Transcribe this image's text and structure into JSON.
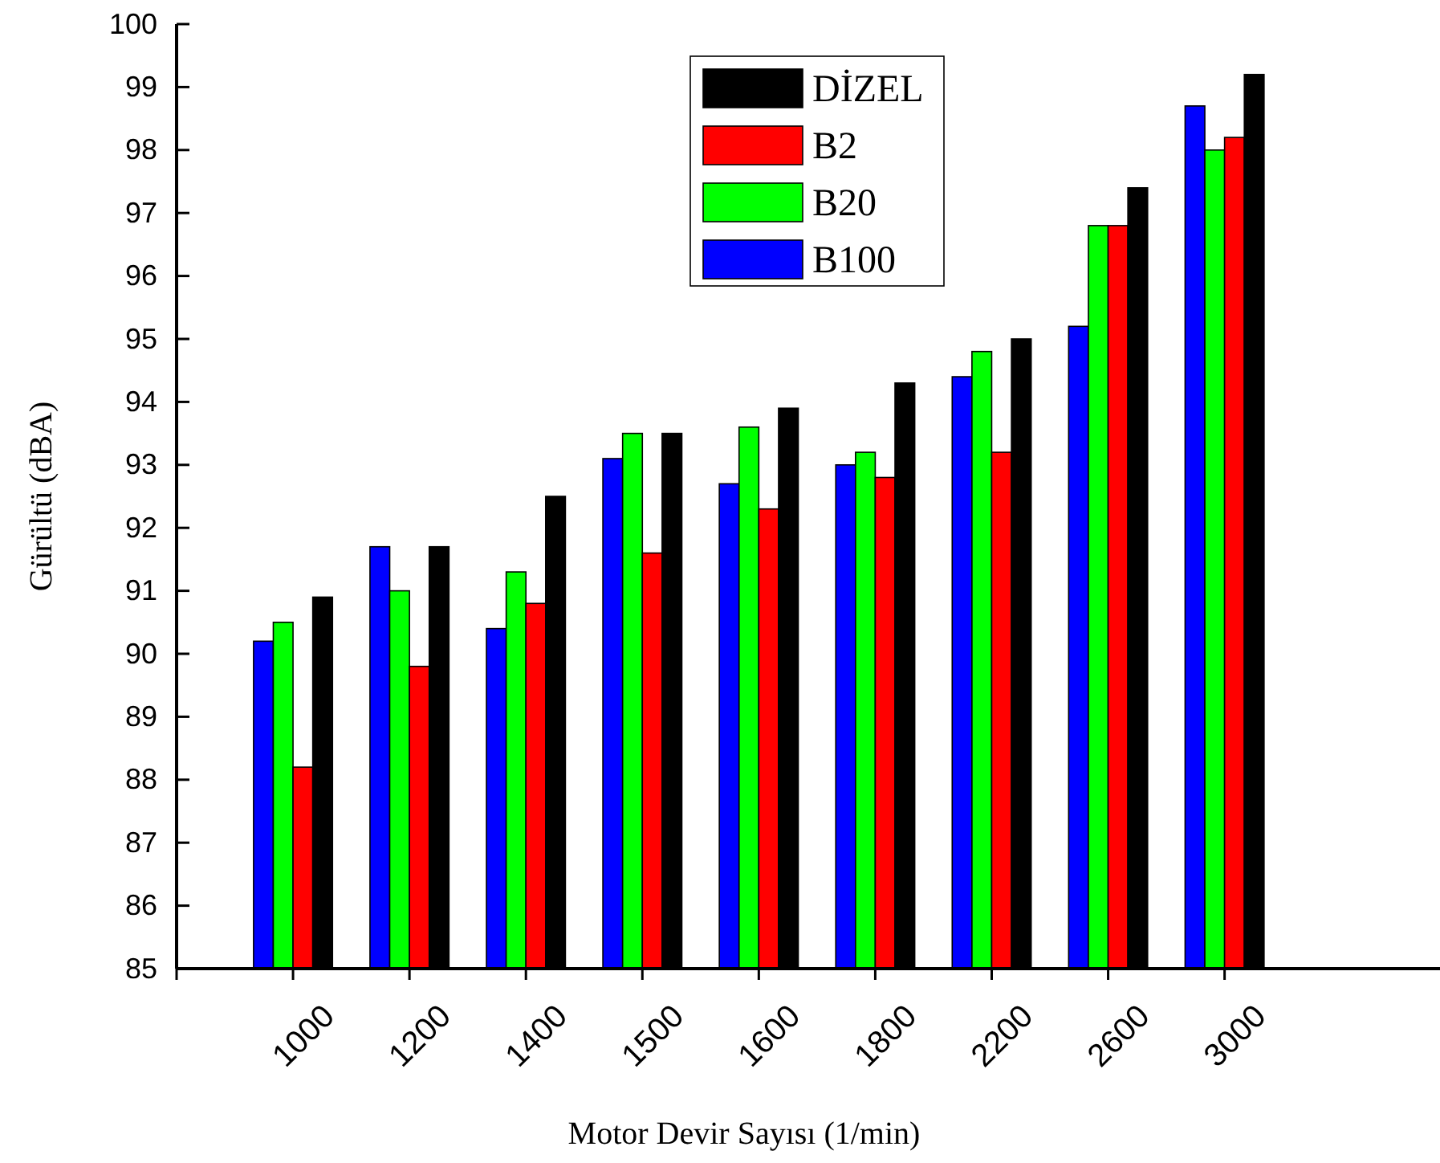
{
  "chart_data": {
    "type": "bar",
    "xlabel": "Motor Devir Sayısı (1/min)",
    "ylabel": "Gürültü (dBA)",
    "categories": [
      "1000",
      "1200",
      "1400",
      "1500",
      "1600",
      "1800",
      "2200",
      "2600",
      "3000"
    ],
    "series": [
      {
        "name": "B100",
        "color": "#0000ff",
        "values": [
          90.2,
          91.7,
          90.4,
          93.1,
          92.7,
          93.0,
          94.4,
          95.2,
          98.7
        ]
      },
      {
        "name": "B20",
        "color": "#00ff00",
        "values": [
          90.5,
          91.0,
          91.3,
          93.5,
          93.6,
          93.2,
          94.8,
          96.8,
          98.0
        ]
      },
      {
        "name": "B2",
        "color": "#ff0000",
        "values": [
          88.2,
          89.8,
          90.8,
          91.6,
          92.3,
          92.8,
          93.2,
          96.8,
          98.2
        ]
      },
      {
        "name": "DİZEL",
        "color": "#000000",
        "values": [
          90.9,
          91.7,
          92.5,
          93.5,
          93.9,
          94.3,
          95.0,
          97.4,
          99.2
        ]
      }
    ],
    "ylim": [
      85,
      100
    ],
    "yticks": [
      85,
      86,
      87,
      88,
      89,
      90,
      91,
      92,
      93,
      94,
      95,
      96,
      97,
      98,
      99,
      100
    ],
    "grid": false,
    "legend": "top"
  }
}
